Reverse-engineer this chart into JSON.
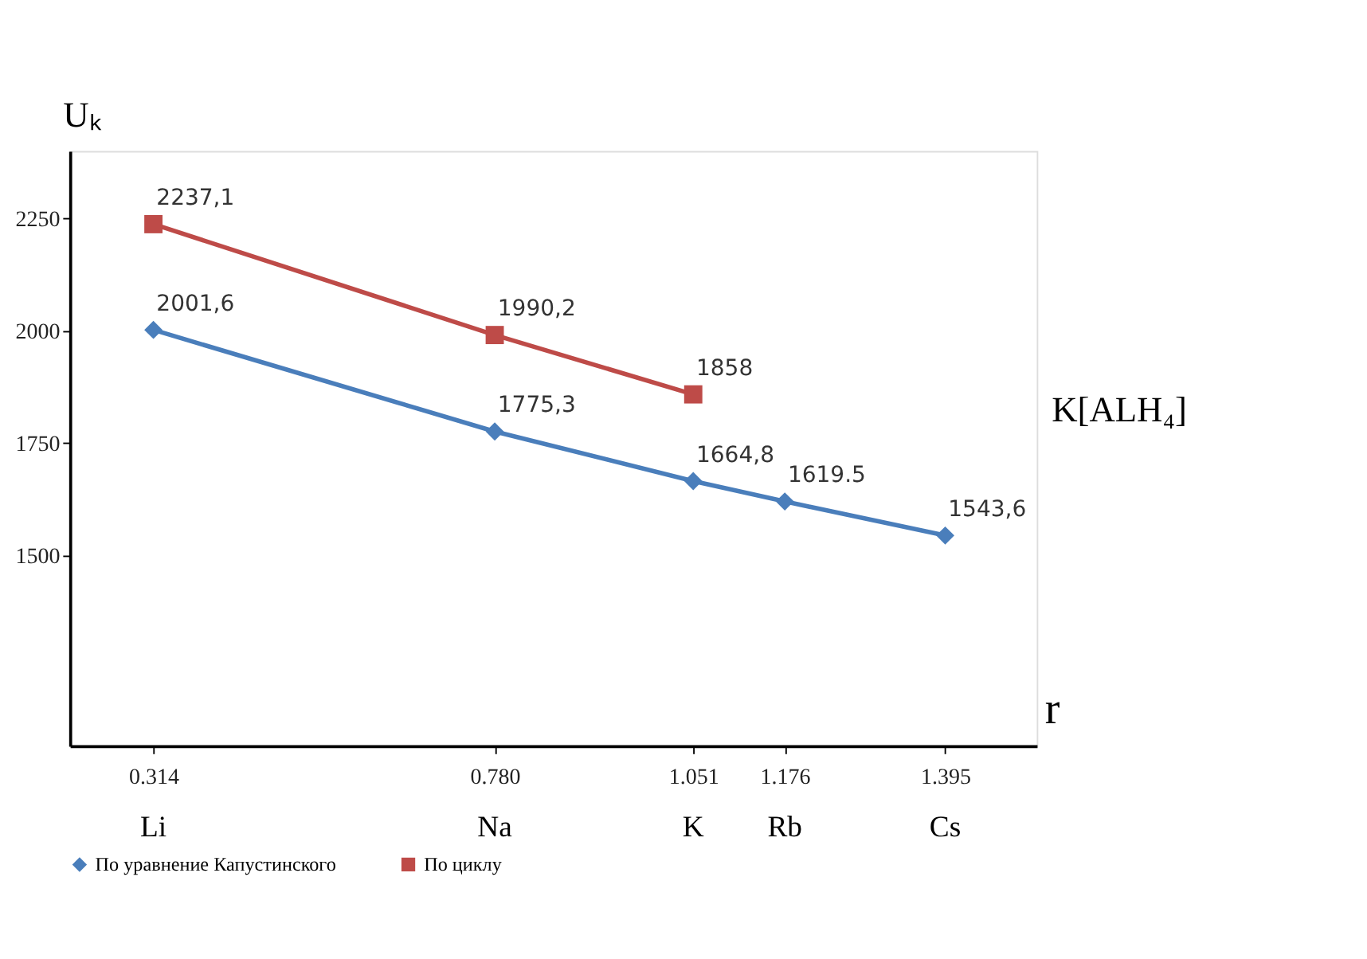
{
  "chart_data": {
    "type": "line",
    "ylabel": "Uₖ",
    "xlabel": "r",
    "annotations": [
      "K[ALH₄]",
      "Li",
      "Na",
      "K",
      "Rb",
      "Cs"
    ],
    "xlim": [
      0.2,
      1.52
    ],
    "xticks": [
      0.314,
      {
        "value": 0.78,
        "label": "0.780"
      },
      1.051,
      1.176,
      1.395
    ],
    "ylim": [
      1075,
      2400
    ],
    "yticks": [
      1500,
      1750,
      2000,
      2250
    ],
    "grid": false,
    "legend": "bottom",
    "series": [
      {
        "name": "По уравнение Капустинского",
        "color": "#4a7ebb",
        "marker": "diamond",
        "x": [
          0.314,
          0.78,
          1.051,
          1.176,
          1.395
        ],
        "values": [
          2001.6,
          1775.3,
          1664.8,
          1619.5,
          1543.6
        ],
        "value_labels": [
          "2001,6",
          "1775,3",
          "1664,8",
          "1619.5",
          "1543,6"
        ]
      },
      {
        "name": "По циклу",
        "color": "#be4b48",
        "marker": "square",
        "x": [
          0.314,
          0.78,
          1.051
        ],
        "values": [
          2237.1,
          1990.2,
          1858
        ],
        "value_labels": [
          "2237,1",
          "1990,2",
          "1858"
        ]
      }
    ]
  }
}
